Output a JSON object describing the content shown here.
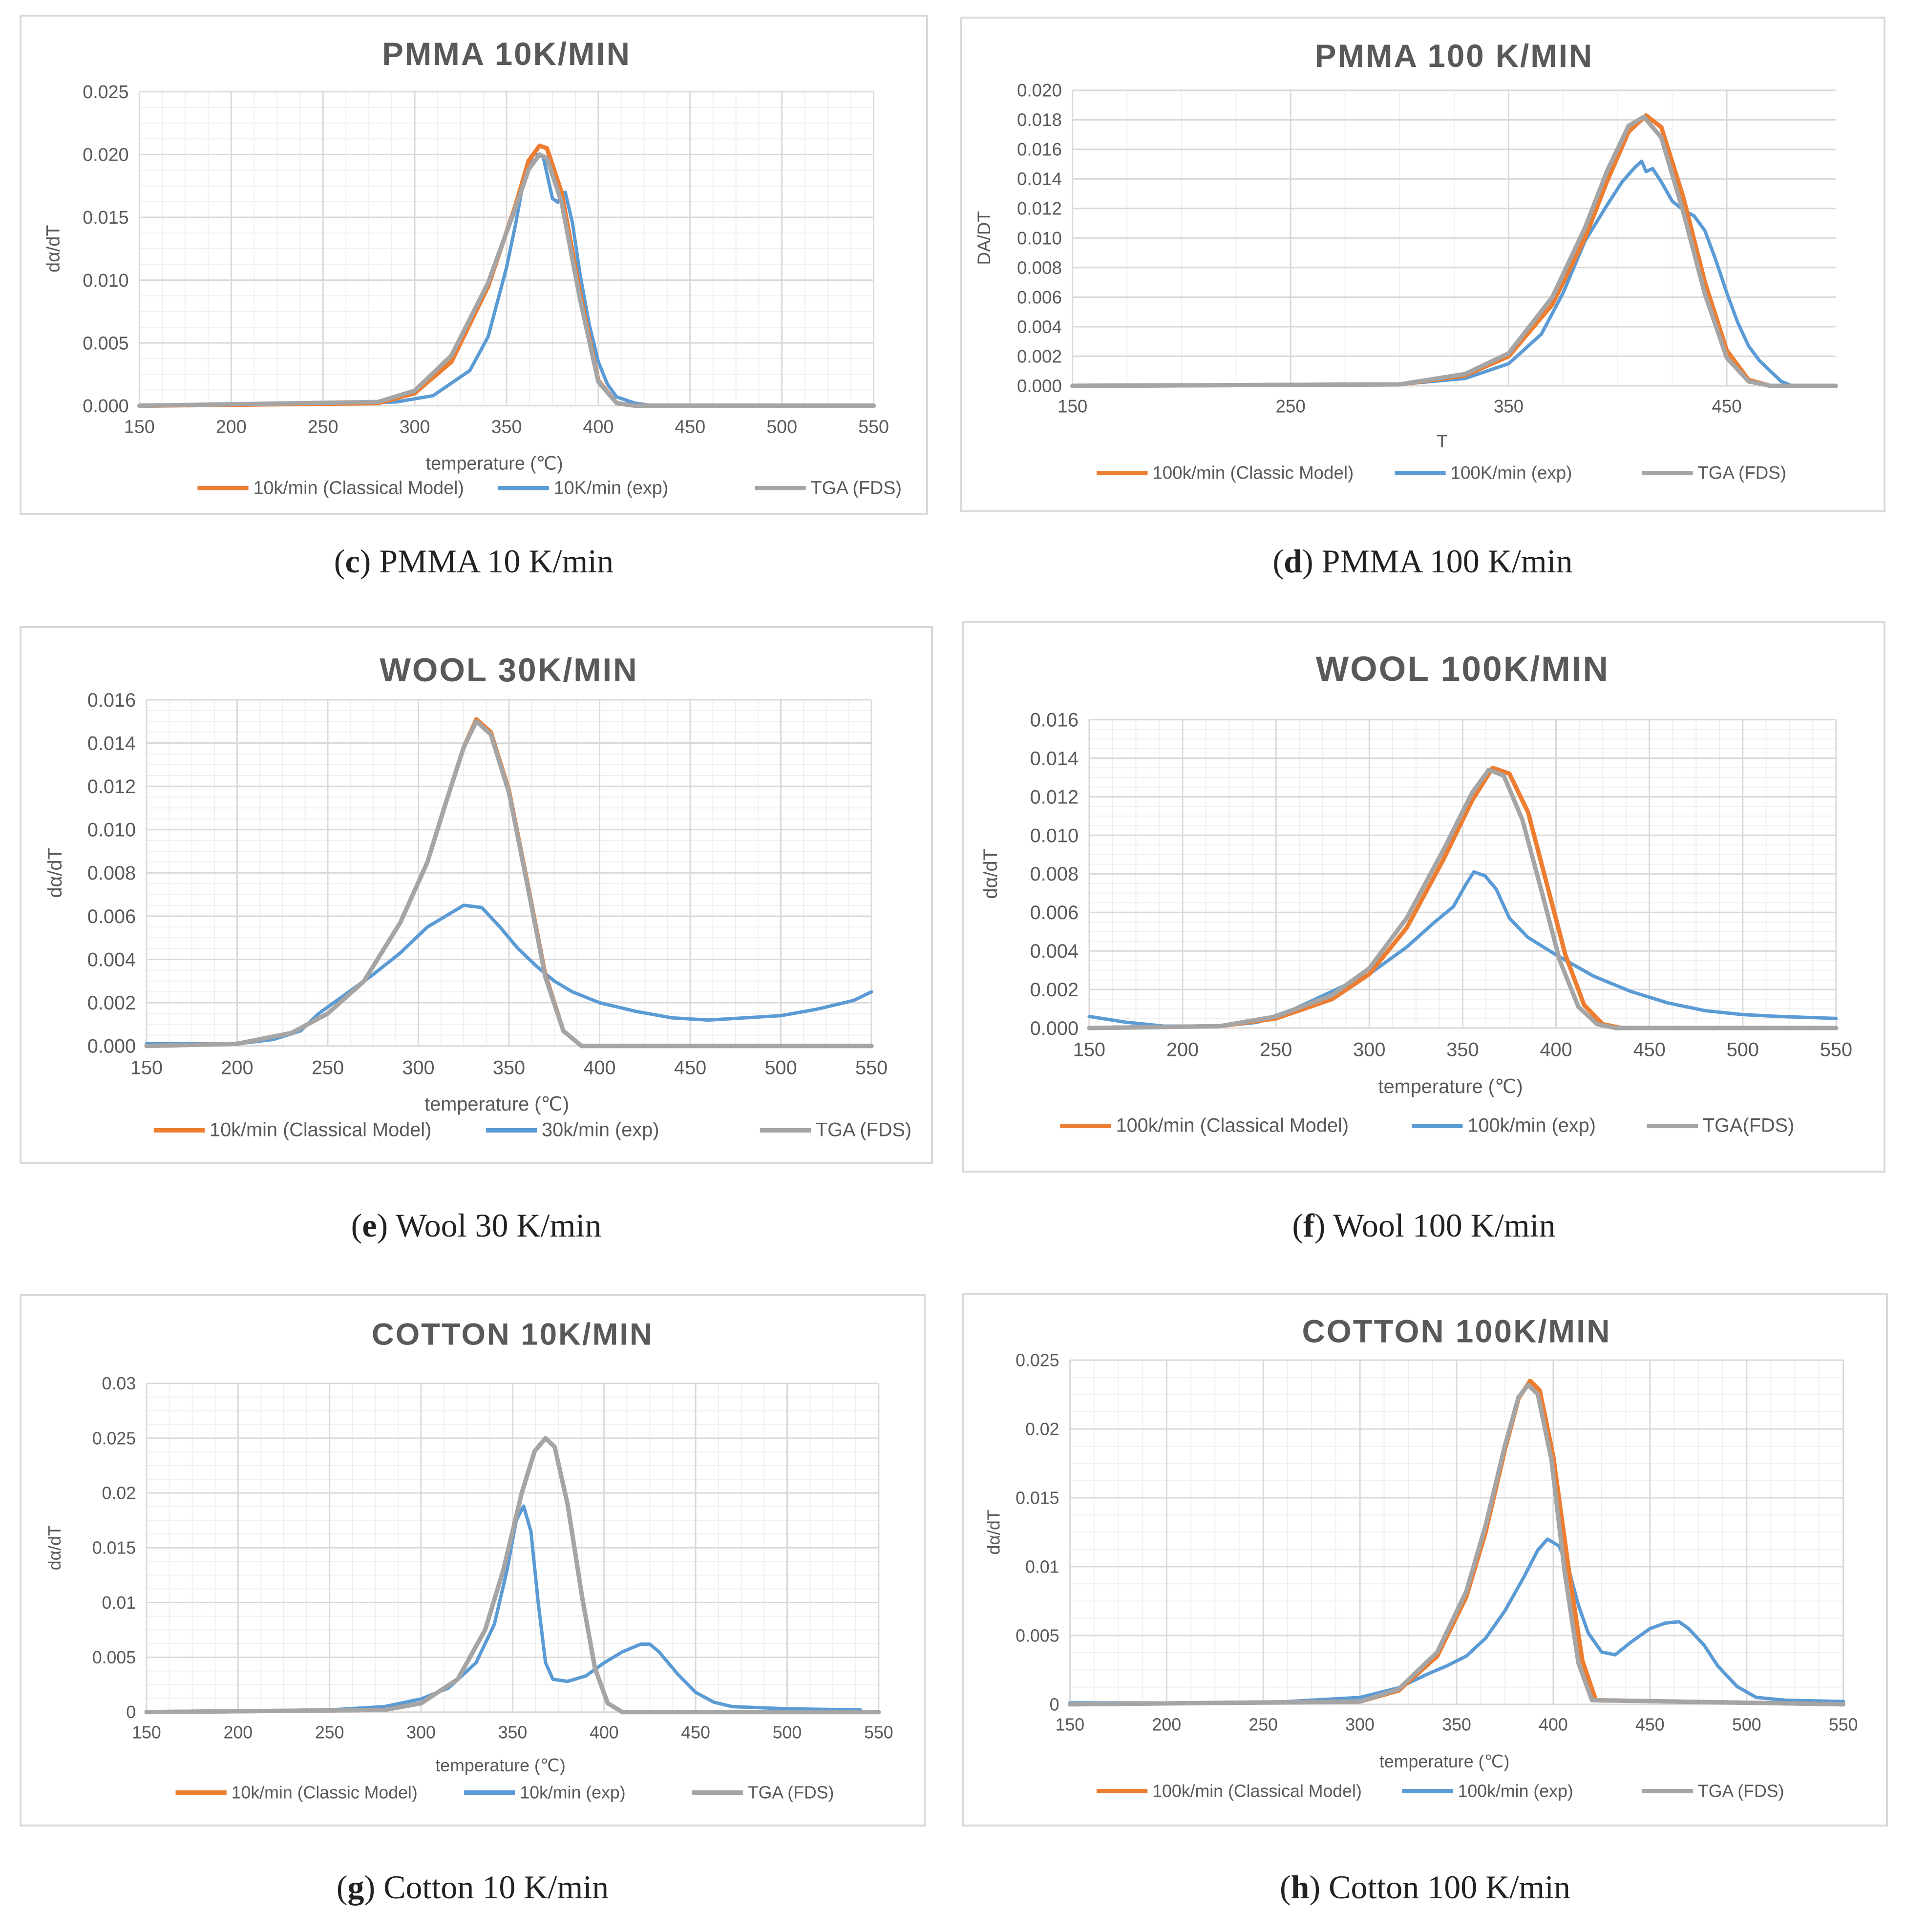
{
  "colors": {
    "classical": "#ed7d31",
    "exp": "#5b9bd5",
    "fds": "#a5a5a5",
    "grid_major": "#d9d9d9",
    "grid_minor": "#efefef",
    "text": "#595959"
  },
  "captions": [
    {
      "letter": "c",
      "text": " PMMA 10 K/min"
    },
    {
      "letter": "d",
      "text": " PMMA 100 K/min"
    },
    {
      "letter": "e",
      "text": " Wool 30 K/min"
    },
    {
      "letter": "f",
      "text": " Wool 100 K/min"
    },
    {
      "letter": "g",
      "text": " Cotton 10 K/min"
    },
    {
      "letter": "h",
      "text": " Cotton 100 K/min"
    }
  ],
  "chart_data": [
    {
      "type": "line",
      "title": "PMMA 10K/MIN",
      "xlabel": "temperature (℃)",
      "ylabel": "dα/dT",
      "xlim": [
        150,
        550
      ],
      "xticks": [
        150,
        200,
        250,
        300,
        350,
        400,
        450,
        500,
        550
      ],
      "ylim": [
        0,
        0.025
      ],
      "yticks": [
        0.0,
        0.005,
        0.01,
        0.015,
        0.02,
        0.025
      ],
      "ytick_labels": [
        "0.000",
        "0.005",
        "0.010",
        "0.015",
        "0.020",
        "0.025"
      ],
      "series": [
        {
          "name": "10k/min (Classical Model)",
          "x": [
            150,
            280,
            300,
            320,
            340,
            355,
            362,
            368,
            372,
            380,
            390,
            400,
            410,
            420,
            550
          ],
          "y": [
            0,
            0.0002,
            0.001,
            0.0035,
            0.0095,
            0.016,
            0.0195,
            0.0207,
            0.0205,
            0.017,
            0.009,
            0.002,
            0.0002,
            0,
            0
          ]
        },
        {
          "name": "10K/min (exp)",
          "x": [
            150,
            200,
            260,
            290,
            310,
            330,
            340,
            350,
            355,
            360,
            365,
            370,
            372,
            375,
            378,
            380,
            382,
            386,
            390,
            395,
            400,
            405,
            410,
            420,
            430,
            550
          ],
          "y": [
            0,
            0.0001,
            0.0002,
            0.0003,
            0.0008,
            0.0028,
            0.0055,
            0.011,
            0.0145,
            0.0185,
            0.0201,
            0.0198,
            0.0185,
            0.0165,
            0.0162,
            0.0168,
            0.017,
            0.0145,
            0.0105,
            0.0065,
            0.0035,
            0.0017,
            0.0007,
            0.0002,
            0,
            0
          ]
        },
        {
          "name": "TGA (FDS)",
          "x": [
            150,
            280,
            300,
            320,
            340,
            355,
            362,
            368,
            372,
            380,
            390,
            400,
            410,
            420,
            550
          ],
          "y": [
            0,
            0.0003,
            0.0012,
            0.004,
            0.0098,
            0.0158,
            0.0188,
            0.02,
            0.0197,
            0.0162,
            0.0085,
            0.0019,
            0.0002,
            0,
            0
          ]
        }
      ],
      "legend": "bottom"
    },
    {
      "type": "line",
      "title": "PMMA 100 K/MIN",
      "xlabel": "T",
      "ylabel": "DA/DT",
      "xlim": [
        150,
        500
      ],
      "xticks": [
        150,
        250,
        350,
        450
      ],
      "ylim": [
        0,
        0.02
      ],
      "yticks": [
        0.0,
        0.002,
        0.004,
        0.006,
        0.008,
        0.01,
        0.012,
        0.014,
        0.016,
        0.018,
        0.02
      ],
      "ytick_labels": [
        "0.000",
        "0.002",
        "0.004",
        "0.006",
        "0.008",
        "0.010",
        "0.012",
        "0.014",
        "0.016",
        "0.018",
        "0.020"
      ],
      "series": [
        {
          "name": "100k/min (Classic Model)",
          "x": [
            150,
            300,
            330,
            350,
            370,
            385,
            395,
            405,
            413,
            420,
            430,
            440,
            450,
            460,
            470,
            500
          ],
          "y": [
            0,
            0.0001,
            0.0007,
            0.002,
            0.0055,
            0.01,
            0.0138,
            0.0172,
            0.0183,
            0.0175,
            0.0128,
            0.007,
            0.0024,
            0.0004,
            0,
            0
          ]
        },
        {
          "name": "100K/min (exp)",
          "x": [
            150,
            250,
            300,
            330,
            350,
            365,
            375,
            385,
            395,
            402,
            408,
            411,
            413,
            416,
            420,
            425,
            430,
            435,
            440,
            445,
            450,
            455,
            460,
            465,
            470,
            475,
            480,
            500
          ],
          "y": [
            0,
            0.0001,
            0.0001,
            0.0005,
            0.0015,
            0.0035,
            0.0063,
            0.0098,
            0.0122,
            0.0138,
            0.0148,
            0.0152,
            0.0145,
            0.0147,
            0.0138,
            0.0125,
            0.0119,
            0.0115,
            0.0105,
            0.0085,
            0.0063,
            0.0043,
            0.0027,
            0.0017,
            0.001,
            0.0003,
            0,
            0
          ]
        },
        {
          "name": "TGA (FDS)",
          "x": [
            150,
            300,
            330,
            350,
            370,
            385,
            395,
            405,
            412,
            420,
            430,
            440,
            450,
            460,
            470,
            500
          ],
          "y": [
            0,
            0.0001,
            0.0008,
            0.0022,
            0.006,
            0.0107,
            0.0145,
            0.0176,
            0.0182,
            0.0168,
            0.0118,
            0.0062,
            0.0019,
            0.0003,
            0,
            0
          ]
        }
      ],
      "legend": "bottom"
    },
    {
      "type": "line",
      "title": "WOOL 30K/MIN",
      "xlabel": "temperature (℃)",
      "ylabel": "dα/dT",
      "xlim": [
        150,
        550
      ],
      "xticks": [
        150,
        200,
        250,
        300,
        350,
        400,
        450,
        500,
        550
      ],
      "ylim": [
        0,
        0.016
      ],
      "yticks": [
        0.0,
        0.002,
        0.004,
        0.006,
        0.008,
        0.01,
        0.012,
        0.014,
        0.016
      ],
      "ytick_labels": [
        "0.000",
        "0.002",
        "0.004",
        "0.006",
        "0.008",
        "0.010",
        "0.012",
        "0.014",
        "0.016"
      ],
      "series": [
        {
          "name": "10k/min (Classical Model)",
          "x": [
            150,
            200,
            230,
            250,
            270,
            290,
            305,
            315,
            325,
            332,
            340,
            350,
            360,
            370,
            380,
            390,
            500,
            550
          ],
          "y": [
            0,
            0.0001,
            0.0006,
            0.0015,
            0.003,
            0.0057,
            0.0085,
            0.0112,
            0.0138,
            0.0151,
            0.0145,
            0.0118,
            0.0076,
            0.0033,
            0.0007,
            0,
            0,
            0
          ]
        },
        {
          "name": "30k/min (exp)",
          "x": [
            150,
            200,
            220,
            235,
            245,
            260,
            275,
            290,
            305,
            315,
            325,
            335,
            345,
            355,
            365,
            375,
            385,
            400,
            420,
            440,
            460,
            480,
            500,
            520,
            540,
            550
          ],
          "y": [
            0.0001,
            0.0001,
            0.0003,
            0.0007,
            0.0015,
            0.0024,
            0.0033,
            0.0043,
            0.0055,
            0.006,
            0.0065,
            0.0064,
            0.0055,
            0.0045,
            0.0037,
            0.003,
            0.0025,
            0.002,
            0.0016,
            0.0013,
            0.0012,
            0.0013,
            0.0014,
            0.0017,
            0.0021,
            0.0025
          ]
        },
        {
          "name": "TGA (FDS)",
          "x": [
            150,
            200,
            230,
            250,
            270,
            290,
            305,
            315,
            325,
            332,
            340,
            350,
            360,
            370,
            380,
            390,
            550
          ],
          "y": [
            0,
            0.0001,
            0.0006,
            0.0015,
            0.003,
            0.0057,
            0.0085,
            0.0112,
            0.0138,
            0.015,
            0.0144,
            0.0117,
            0.0075,
            0.0032,
            0.0007,
            0,
            0
          ]
        }
      ],
      "legend": "bottom"
    },
    {
      "type": "line",
      "title": "WOOL 100K/MIN",
      "xlabel": "temperature (℃)",
      "ylabel": "dα/dT",
      "xlim": [
        150,
        550
      ],
      "xticks": [
        150,
        200,
        250,
        300,
        350,
        400,
        450,
        500,
        550
      ],
      "ylim": [
        0,
        0.016
      ],
      "yticks": [
        0.0,
        0.002,
        0.004,
        0.006,
        0.008,
        0.01,
        0.012,
        0.014,
        0.016
      ],
      "ytick_labels": [
        "0.000",
        "0.002",
        "0.004",
        "0.006",
        "0.008",
        "0.010",
        "0.012",
        "0.014",
        "0.016"
      ],
      "series": [
        {
          "name": "100k/min (Classical Model)",
          "x": [
            150,
            220,
            250,
            280,
            300,
            320,
            340,
            355,
            366,
            375,
            385,
            395,
            405,
            415,
            425,
            435,
            550
          ],
          "y": [
            0,
            0.0001,
            0.0005,
            0.0015,
            0.0028,
            0.0052,
            0.0088,
            0.0118,
            0.0135,
            0.0132,
            0.0112,
            0.0075,
            0.0038,
            0.0012,
            0.0002,
            0,
            0
          ]
        },
        {
          "name": "100k/min (exp)",
          "x": [
            150,
            170,
            190,
            220,
            240,
            260,
            280,
            300,
            320,
            335,
            345,
            352,
            356,
            362,
            368,
            375,
            385,
            400,
            420,
            440,
            460,
            480,
            500,
            520,
            550
          ],
          "y": [
            0.0006,
            0.0003,
            0.0001,
            0.0001,
            0.0003,
            0.001,
            0.0019,
            0.0028,
            0.0042,
            0.0055,
            0.0063,
            0.0075,
            0.0081,
            0.0079,
            0.0072,
            0.0057,
            0.0047,
            0.0038,
            0.0027,
            0.0019,
            0.0013,
            0.0009,
            0.0007,
            0.0006,
            0.0005
          ]
        },
        {
          "name": "TGA(FDS)",
          "x": [
            150,
            220,
            250,
            280,
            300,
            320,
            340,
            355,
            364,
            372,
            382,
            392,
            402,
            412,
            422,
            432,
            550
          ],
          "y": [
            0,
            0.0001,
            0.0006,
            0.0017,
            0.0031,
            0.0057,
            0.0093,
            0.0122,
            0.0134,
            0.0131,
            0.0108,
            0.0072,
            0.0035,
            0.0011,
            0.0002,
            0,
            0
          ]
        }
      ],
      "legend": "bottom"
    },
    {
      "type": "line",
      "title": "COTTON 10K/MIN",
      "xlabel": "temperature (℃)",
      "ylabel": "dα/dT",
      "xlim": [
        150,
        550
      ],
      "xticks": [
        150,
        200,
        250,
        300,
        350,
        400,
        450,
        500,
        550
      ],
      "ylim": [
        0,
        0.03
      ],
      "yticks": [
        0,
        0.005,
        0.01,
        0.015,
        0.02,
        0.025,
        0.03
      ],
      "ytick_labels": [
        "0",
        "0.005",
        "0.01",
        "0.015",
        "0.02",
        "0.025",
        "0.03"
      ],
      "series": [
        {
          "name": "10k/min (Classic Model)",
          "x": [
            150,
            280,
            300,
            320,
            335,
            345,
            355,
            362,
            368,
            373,
            380,
            388,
            395,
            402,
            410,
            550
          ],
          "y": [
            0,
            0.0002,
            0.0008,
            0.003,
            0.0075,
            0.013,
            0.02,
            0.0238,
            0.025,
            0.0242,
            0.019,
            0.0105,
            0.004,
            0.0008,
            0,
            0
          ]
        },
        {
          "name": "10k/min (exp)",
          "x": [
            150,
            250,
            280,
            300,
            315,
            330,
            340,
            347,
            352,
            356,
            360,
            364,
            368,
            372,
            380,
            390,
            400,
            410,
            420,
            425,
            430,
            440,
            450,
            460,
            470,
            500,
            540
          ],
          "y": [
            0,
            0.0002,
            0.0005,
            0.0012,
            0.0022,
            0.0045,
            0.008,
            0.013,
            0.0175,
            0.0188,
            0.0165,
            0.01,
            0.0045,
            0.003,
            0.0028,
            0.0033,
            0.0045,
            0.0055,
            0.0062,
            0.0062,
            0.0055,
            0.0035,
            0.0018,
            0.0009,
            0.0005,
            0.0003,
            0.0002
          ]
        },
        {
          "name": "TGA (FDS)",
          "x": [
            150,
            280,
            300,
            320,
            335,
            345,
            355,
            362,
            368,
            373,
            380,
            388,
            395,
            402,
            410,
            550
          ],
          "y": [
            0,
            0.0002,
            0.0008,
            0.003,
            0.0075,
            0.013,
            0.02,
            0.0238,
            0.025,
            0.0242,
            0.019,
            0.0105,
            0.004,
            0.0008,
            0,
            0
          ]
        }
      ],
      "legend": "bottom"
    },
    {
      "type": "line",
      "title": "COTTON 100K/MIN",
      "xlabel": "temperature (℃)",
      "ylabel": "dα/dT",
      "xlim": [
        150,
        550
      ],
      "xticks": [
        150,
        200,
        250,
        300,
        350,
        400,
        450,
        500,
        550
      ],
      "ylim": [
        0,
        0.025
      ],
      "yticks": [
        0,
        0.005,
        0.01,
        0.015,
        0.02,
        0.025
      ],
      "ytick_labels": [
        "0",
        "0.005",
        "0.01",
        "0.015",
        "0.02",
        "0.025"
      ],
      "series": [
        {
          "name": "100k/min (Classical Model)",
          "x": [
            150,
            300,
            320,
            340,
            355,
            365,
            375,
            382,
            388,
            393,
            400,
            408,
            415,
            422,
            550
          ],
          "y": [
            0,
            0.0002,
            0.001,
            0.0035,
            0.0078,
            0.0125,
            0.0185,
            0.0222,
            0.0235,
            0.0228,
            0.018,
            0.0098,
            0.0032,
            0.0003,
            0
          ]
        },
        {
          "name": "100k/min (exp)",
          "x": [
            150,
            250,
            300,
            320,
            335,
            345,
            355,
            365,
            375,
            385,
            392,
            397,
            403,
            408,
            413,
            418,
            425,
            432,
            440,
            450,
            458,
            465,
            470,
            478,
            485,
            495,
            505,
            520,
            550
          ],
          "y": [
            0.0001,
            0.0001,
            0.0005,
            0.0012,
            0.0022,
            0.0028,
            0.0035,
            0.0048,
            0.0068,
            0.0093,
            0.0112,
            0.012,
            0.0115,
            0.0098,
            0.0072,
            0.0052,
            0.0038,
            0.0036,
            0.0045,
            0.0055,
            0.0059,
            0.006,
            0.0055,
            0.0043,
            0.0028,
            0.0013,
            0.0005,
            0.0003,
            0.0002
          ]
        },
        {
          "name": "TGA (FDS)",
          "x": [
            150,
            300,
            320,
            340,
            355,
            365,
            375,
            382,
            387,
            392,
            399,
            406,
            413,
            420,
            550
          ],
          "y": [
            0,
            0.0002,
            0.0011,
            0.0038,
            0.0082,
            0.013,
            0.0188,
            0.0223,
            0.0232,
            0.0225,
            0.0178,
            0.0095,
            0.003,
            0.0003,
            0
          ]
        }
      ],
      "legend": "bottom"
    }
  ]
}
